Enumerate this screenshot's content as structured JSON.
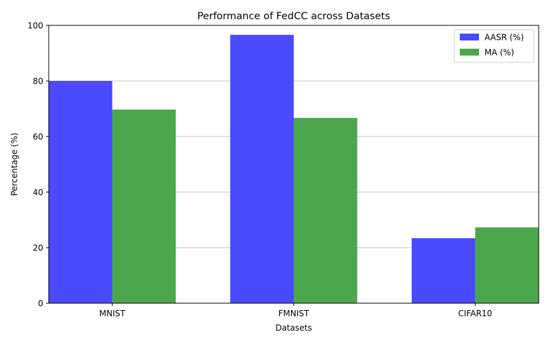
{
  "chart_data": {
    "type": "bar",
    "title": "Performance of FedCC across Datasets",
    "xlabel": "Datasets",
    "ylabel": "Percentage (%)",
    "categories": [
      "MNIST",
      "FMNIST",
      "CIFAR10"
    ],
    "series": [
      {
        "name": "AASR (%)",
        "values": [
          80.0,
          96.6,
          23.4
        ],
        "color": "#4a4aff"
      },
      {
        "name": "MA (%)",
        "values": [
          69.7,
          66.7,
          27.3
        ],
        "color": "#4ca64c"
      }
    ],
    "ylim": [
      0,
      100
    ],
    "yticks": [
      "0",
      "20",
      "40",
      "60",
      "80",
      "100"
    ],
    "grid": "y-axis",
    "legend": "top-right"
  }
}
